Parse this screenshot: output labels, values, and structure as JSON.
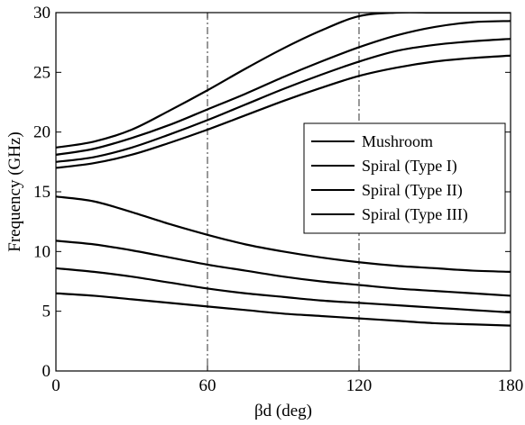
{
  "chart_data": {
    "type": "line",
    "title": "",
    "xlabel": "βd (deg)",
    "ylabel": "Frequency (GHz)",
    "xlim": [
      0,
      180
    ],
    "ylim": [
      0,
      30
    ],
    "xticks": [
      0,
      60,
      120,
      180
    ],
    "yticks": [
      0,
      5,
      10,
      15,
      20,
      25,
      30
    ],
    "grid": "vertical dash-dot lines at x = 60 and 120",
    "legend_position": "right, middle",
    "legend": [
      "Mushroom",
      "Spiral (Type I)",
      "Spiral (Type II)",
      "Spiral (Type III)"
    ],
    "x": [
      0,
      15,
      30,
      45,
      60,
      75,
      90,
      105,
      120,
      135,
      150,
      165,
      180
    ],
    "series": [
      {
        "name": "Mushroom",
        "band": "lower",
        "values": [
          14.6,
          14.2,
          13.3,
          12.3,
          11.4,
          10.6,
          10.0,
          9.5,
          9.1,
          8.8,
          8.6,
          8.4,
          8.3
        ]
      },
      {
        "name": "Mushroom",
        "band": "upper",
        "values": [
          18.7,
          19.2,
          20.2,
          21.8,
          23.5,
          25.3,
          27.0,
          28.5,
          29.7,
          30.0,
          30.0,
          30.0,
          30.0
        ]
      },
      {
        "name": "Spiral (Type I)",
        "band": "lower",
        "values": [
          10.9,
          10.6,
          10.1,
          9.5,
          8.9,
          8.4,
          7.9,
          7.5,
          7.2,
          6.9,
          6.7,
          6.5,
          6.3
        ]
      },
      {
        "name": "Spiral (Type I)",
        "band": "upper",
        "values": [
          18.1,
          18.6,
          19.5,
          20.6,
          21.9,
          23.2,
          24.6,
          25.9,
          27.1,
          28.1,
          28.8,
          29.2,
          29.3
        ]
      },
      {
        "name": "Spiral (Type II)",
        "band": "lower",
        "values": [
          8.6,
          8.3,
          7.9,
          7.4,
          6.9,
          6.5,
          6.2,
          5.9,
          5.7,
          5.5,
          5.3,
          5.1,
          4.9
        ]
      },
      {
        "name": "Spiral (Type II)",
        "band": "upper",
        "values": [
          17.5,
          17.9,
          18.7,
          19.8,
          21.0,
          22.3,
          23.6,
          24.8,
          25.9,
          26.8,
          27.3,
          27.6,
          27.8
        ]
      },
      {
        "name": "Spiral (Type III)",
        "band": "lower",
        "values": [
          6.5,
          6.3,
          6.0,
          5.7,
          5.4,
          5.1,
          4.8,
          4.6,
          4.4,
          4.2,
          4.0,
          3.9,
          3.8
        ]
      },
      {
        "name": "Spiral (Type III)",
        "band": "upper",
        "values": [
          17.0,
          17.4,
          18.1,
          19.1,
          20.2,
          21.4,
          22.6,
          23.7,
          24.7,
          25.4,
          25.9,
          26.2,
          26.4
        ]
      }
    ],
    "colors": {
      "line": "#000000",
      "background": "#ffffff"
    }
  }
}
